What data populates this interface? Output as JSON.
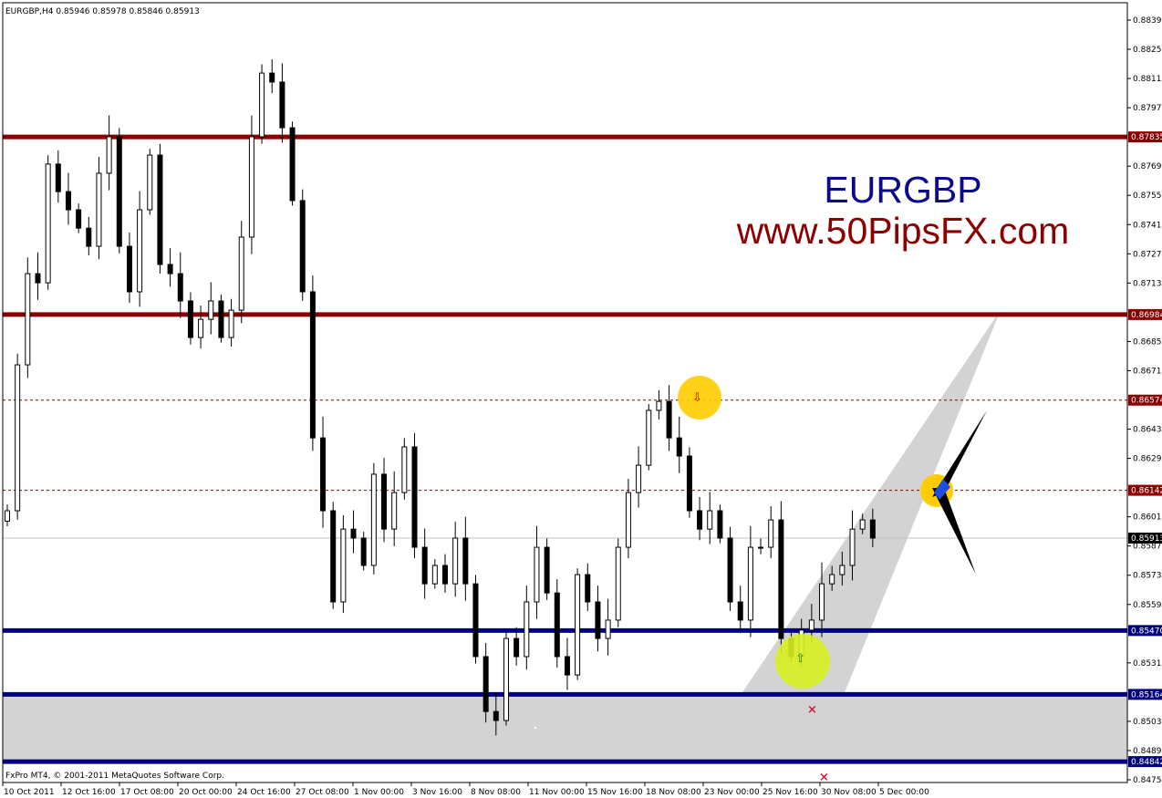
{
  "header": {
    "title": "EURGBP,H4  0.85946 0.85978 0.85846 0.85913"
  },
  "footer": {
    "copyright": "FxPro MT4, © 2001-2011 MetaQuotes Software Corp."
  },
  "annotations": {
    "symbol": "EURGBP",
    "website": "www.50PipsFX.com",
    "symbol_color": "#0a0a8c",
    "website_color": "#8b0000"
  },
  "chart_data": {
    "type": "candlestick",
    "title": "EURGBP,H4",
    "ylim": [
      0.84755,
      0.88395
    ],
    "grid": false,
    "y_ticks": [
      "0.88395",
      "0.88255",
      "0.88115",
      "0.87975",
      "0.87695",
      "0.87555",
      "0.87415",
      "0.87275",
      "0.87135",
      "0.86855",
      "0.86715",
      "0.86435",
      "0.86295",
      "0.86015",
      "0.85875",
      "0.85735",
      "0.85595",
      "0.85315",
      "0.85035",
      "0.84895",
      "0.84755"
    ],
    "x_ticks": [
      "10 Oct 2011",
      "12 Oct 16:00",
      "17 Oct 08:00",
      "20 Oct 00:00",
      "24 Oct 16:00",
      "27 Oct 08:00",
      "1 Nov 00:00",
      "3 Nov 16:00",
      "8 Nov 08:00",
      "11 Nov 00:00",
      "15 Nov 16:00",
      "18 Nov 08:00",
      "23 Nov 00:00",
      "25 Nov 16:00",
      "30 Nov 08:00",
      "5 Dec 00:00"
    ],
    "closes": [
      0.86044,
      0.86743,
      0.8718,
      0.87136,
      0.87705,
      0.87573,
      0.87486,
      0.87398,
      0.87311,
      0.87661,
      0.87836,
      0.87311,
      0.87093,
      0.87486,
      0.87748,
      0.87224,
      0.8718,
      0.87049,
      0.86874,
      0.86961,
      0.87049,
      0.86874,
      0.87005,
      0.87355,
      0.87836,
      0.88141,
      0.88098,
      0.87879,
      0.8753,
      0.87093,
      0.86393,
      0.86044,
      0.85607,
      0.85956,
      0.85913,
      0.85782,
      0.86219,
      0.85956,
      0.86131,
      0.8635,
      0.85869,
      0.85694,
      0.85782,
      0.85694,
      0.85913,
      0.85694,
      0.85345,
      0.85082,
      0.85039,
      0.85432,
      0.85345,
      0.85607,
      0.85869,
      0.8565,
      0.85345,
      0.85257,
      0.85738,
      0.85607,
      0.85432,
      0.8552,
      0.85869,
      0.86131,
      0.86262,
      0.86525,
      0.86568,
      0.86393,
      0.86306,
      0.86044,
      0.85956,
      0.86044,
      0.85913,
      0.85607,
      0.8552,
      0.85869,
      0.85869,
      0.86,
      0.85432,
      0.85345,
      0.85472,
      0.8552,
      0.85694,
      0.85738,
      0.85782,
      0.85956,
      0.86,
      0.85913
    ],
    "last_price": {
      "value": "0.85913",
      "color": "#000000"
    },
    "levels": [
      {
        "value": "0.87835",
        "style": "solid-thick",
        "color": "#8b0000"
      },
      {
        "value": "0.86984",
        "style": "solid-thick",
        "color": "#8b0000"
      },
      {
        "value": "0.86574",
        "style": "dashed",
        "color": "#8b0000"
      },
      {
        "value": "0.86142",
        "style": "dashed",
        "color": "#8b0000"
      },
      {
        "value": "0.85470",
        "style": "solid-thick",
        "color": "#000080"
      },
      {
        "value": "0.85164",
        "style": "solid-thick",
        "color": "#000080"
      },
      {
        "value": "0.84842",
        "style": "solid-thick",
        "color": "#000080"
      }
    ],
    "zone": {
      "from": 0.84842,
      "to": 0.85164,
      "color": "#d3d3d3"
    }
  }
}
